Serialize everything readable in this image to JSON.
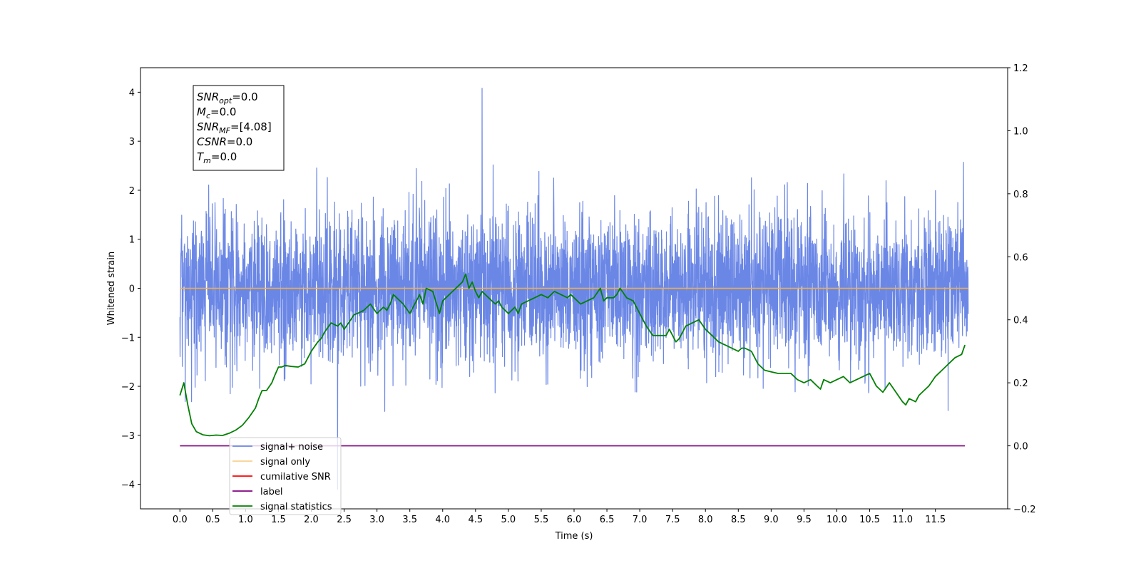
{
  "chart_data": {
    "type": "line",
    "title": "",
    "xlabel": "Time (s)",
    "ylabel": "Whitened strain",
    "ylabel_right": "",
    "xlim": [
      -0.6,
      12.6
    ],
    "ylim": [
      -4.5,
      4.5
    ],
    "ylim_right": [
      -0.2,
      1.2
    ],
    "x_ticks": [
      0.0,
      0.5,
      1.0,
      1.5,
      2.0,
      2.5,
      3.0,
      3.5,
      4.0,
      4.5,
      5.0,
      5.5,
      6.0,
      6.5,
      7.0,
      7.5,
      8.0,
      8.5,
      9.0,
      9.5,
      10.0,
      10.5,
      11.0,
      11.5
    ],
    "x_tick_labels": [
      "0.0",
      "0.5",
      "1.0",
      "1.5",
      "2.0",
      "2.5",
      "3.0",
      "3.5",
      "4.0",
      "4.5",
      "5.0",
      "5.5",
      "6.0",
      "6.5",
      "7.0",
      "7.5",
      "8.0",
      "8.5",
      "9.0",
      "9.5",
      "10.0",
      "10.5",
      "11.0",
      "11.5"
    ],
    "y_ticks": [
      4,
      3,
      2,
      1,
      0,
      -1,
      -2,
      -3,
      -4
    ],
    "y_tick_labels": [
      "4",
      "3",
      "2",
      "1",
      "0",
      "−1",
      "−2",
      "−3",
      "−4"
    ],
    "y_ticks_right": [
      1.2,
      1.0,
      0.8,
      0.6,
      0.4,
      0.2,
      0.0,
      -0.2
    ],
    "y_tick_labels_right": [
      "1.2",
      "1.0",
      "0.8",
      "0.6",
      "0.4",
      "0.2",
      "0.0",
      "−0.2"
    ],
    "grid": false,
    "legend_position": "lower-left",
    "series": [
      {
        "name": "signal+ noise",
        "axis": "left",
        "color": "#6b87e6",
        "kind": "noise",
        "x_range": [
          0.0,
          12.0
        ],
        "typical_range": [
          -1.6,
          1.6
        ],
        "peak_max": 4.08,
        "peak_min": -4.1
      },
      {
        "name": "signal only",
        "axis": "left",
        "color": "#f5b041",
        "x": [
          0.0,
          12.0
        ],
        "y": [
          0.0,
          0.0
        ]
      },
      {
        "name": "cumilative SNR",
        "axis": "right",
        "color": "#ff0000",
        "x": [],
        "y": []
      },
      {
        "name": "label",
        "axis": "right",
        "color": "#800080",
        "x": [
          0.0,
          11.95
        ],
        "y": [
          0.0,
          0.0
        ]
      },
      {
        "name": "signal statistics",
        "axis": "right",
        "color": "#008000",
        "x": [
          0.0,
          0.06,
          0.12,
          0.18,
          0.25,
          0.35,
          0.45,
          0.55,
          0.65,
          0.75,
          0.85,
          0.95,
          1.05,
          1.15,
          1.2,
          1.25,
          1.32,
          1.4,
          1.45,
          1.5,
          1.55,
          1.6,
          1.7,
          1.8,
          1.9,
          2.0,
          2.1,
          2.15,
          2.2,
          2.3,
          2.4,
          2.45,
          2.5,
          2.6,
          2.65,
          2.7,
          2.8,
          2.9,
          3.0,
          3.1,
          3.15,
          3.2,
          3.25,
          3.3,
          3.4,
          3.5,
          3.55,
          3.6,
          3.65,
          3.7,
          3.75,
          3.85,
          3.95,
          4.0,
          4.05,
          4.1,
          4.2,
          4.3,
          4.35,
          4.4,
          4.45,
          4.5,
          4.55,
          4.6,
          4.7,
          4.8,
          4.85,
          4.9,
          5.0,
          5.1,
          5.15,
          5.2,
          5.3,
          5.4,
          5.5,
          5.6,
          5.7,
          5.8,
          5.9,
          5.95,
          6.0,
          6.1,
          6.2,
          6.3,
          6.4,
          6.45,
          6.5,
          6.6,
          6.65,
          6.7,
          6.8,
          6.9,
          7.0,
          7.1,
          7.2,
          7.3,
          7.4,
          7.45,
          7.5,
          7.55,
          7.6,
          7.7,
          7.8,
          7.9,
          8.0,
          8.1,
          8.2,
          8.3,
          8.4,
          8.5,
          8.55,
          8.6,
          8.7,
          8.8,
          8.9,
          9.0,
          9.1,
          9.2,
          9.3,
          9.4,
          9.5,
          9.6,
          9.7,
          9.75,
          9.8,
          9.9,
          10.0,
          10.1,
          10.2,
          10.3,
          10.4,
          10.5,
          10.55,
          10.6,
          10.7,
          10.8,
          10.9,
          11.0,
          11.05,
          11.1,
          11.2,
          11.25,
          11.3,
          11.4,
          11.5,
          11.6,
          11.7,
          11.8,
          11.9,
          11.95
        ],
        "y": [
          0.16,
          0.2,
          0.13,
          0.07,
          0.045,
          0.035,
          0.032,
          0.034,
          0.033,
          0.04,
          0.05,
          0.065,
          0.09,
          0.12,
          0.15,
          0.175,
          0.176,
          0.2,
          0.226,
          0.25,
          0.25,
          0.255,
          0.252,
          0.25,
          0.26,
          0.3,
          0.33,
          0.34,
          0.36,
          0.39,
          0.38,
          0.39,
          0.37,
          0.4,
          0.416,
          0.42,
          0.43,
          0.45,
          0.42,
          0.44,
          0.43,
          0.45,
          0.48,
          0.47,
          0.45,
          0.42,
          0.44,
          0.46,
          0.48,
          0.45,
          0.5,
          0.49,
          0.42,
          0.46,
          0.47,
          0.48,
          0.5,
          0.52,
          0.545,
          0.5,
          0.52,
          0.49,
          0.47,
          0.49,
          0.47,
          0.45,
          0.46,
          0.44,
          0.42,
          0.44,
          0.42,
          0.45,
          0.46,
          0.47,
          0.48,
          0.47,
          0.49,
          0.48,
          0.47,
          0.48,
          0.47,
          0.45,
          0.46,
          0.47,
          0.5,
          0.46,
          0.47,
          0.47,
          0.48,
          0.5,
          0.47,
          0.46,
          0.42,
          0.38,
          0.35,
          0.35,
          0.35,
          0.37,
          0.35,
          0.33,
          0.34,
          0.38,
          0.39,
          0.4,
          0.37,
          0.35,
          0.33,
          0.32,
          0.31,
          0.3,
          0.31,
          0.31,
          0.3,
          0.26,
          0.24,
          0.235,
          0.23,
          0.23,
          0.23,
          0.21,
          0.2,
          0.21,
          0.19,
          0.18,
          0.21,
          0.2,
          0.21,
          0.22,
          0.2,
          0.21,
          0.22,
          0.23,
          0.21,
          0.19,
          0.17,
          0.2,
          0.17,
          0.14,
          0.13,
          0.15,
          0.14,
          0.16,
          0.17,
          0.19,
          0.22,
          0.24,
          0.26,
          0.28,
          0.29,
          0.32
        ]
      }
    ],
    "annotation": {
      "lines": [
        {
          "name": "SNR",
          "sub": "opt",
          "value": "=0.0"
        },
        {
          "name": "M",
          "sub": "c",
          "value": "=0.0"
        },
        {
          "name": "SNR",
          "sub": "MF",
          "value": "=[4.08]"
        },
        {
          "name": "CSNR",
          "sub": "",
          "value": "=0.0"
        },
        {
          "name": "T",
          "sub": "m",
          "value": "=0.0"
        }
      ]
    }
  }
}
